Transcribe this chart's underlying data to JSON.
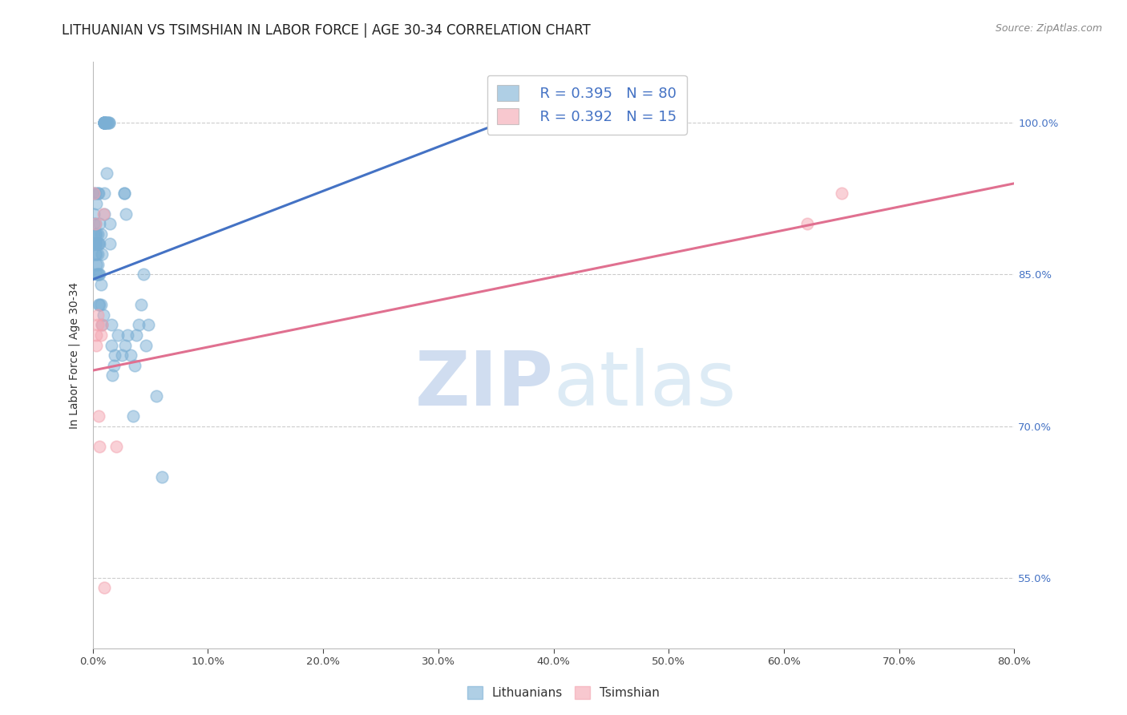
{
  "title": "LITHUANIAN VS TSIMSHIAN IN LABOR FORCE | AGE 30-34 CORRELATION CHART",
  "source_text": "Source: ZipAtlas.com",
  "ylabel": "In Labor Force | Age 30-34",
  "xmin": 0.0,
  "xmax": 0.8,
  "ymin": 0.48,
  "ymax": 1.06,
  "blue_scatter_x": [
    0.001,
    0.001,
    0.001,
    0.001,
    0.001,
    0.002,
    0.002,
    0.002,
    0.002,
    0.002,
    0.003,
    0.003,
    0.003,
    0.003,
    0.003,
    0.003,
    0.004,
    0.004,
    0.004,
    0.004,
    0.004,
    0.004,
    0.005,
    0.005,
    0.005,
    0.005,
    0.006,
    0.006,
    0.006,
    0.006,
    0.007,
    0.007,
    0.007,
    0.008,
    0.008,
    0.009,
    0.01,
    0.01,
    0.01,
    0.01,
    0.01,
    0.01,
    0.01,
    0.01,
    0.01,
    0.01,
    0.01,
    0.01,
    0.011,
    0.011,
    0.012,
    0.013,
    0.013,
    0.014,
    0.014,
    0.015,
    0.015,
    0.016,
    0.016,
    0.017,
    0.018,
    0.019,
    0.022,
    0.025,
    0.027,
    0.027,
    0.028,
    0.029,
    0.03,
    0.033,
    0.035,
    0.036,
    0.038,
    0.04,
    0.042,
    0.044,
    0.046,
    0.048,
    0.055,
    0.06
  ],
  "blue_scatter_y": [
    0.88,
    0.89,
    0.9,
    0.91,
    0.93,
    0.87,
    0.88,
    0.89,
    0.9,
    0.93,
    0.85,
    0.86,
    0.87,
    0.88,
    0.89,
    0.92,
    0.85,
    0.86,
    0.87,
    0.88,
    0.89,
    0.93,
    0.82,
    0.85,
    0.88,
    0.93,
    0.82,
    0.85,
    0.88,
    0.9,
    0.82,
    0.84,
    0.89,
    0.8,
    0.87,
    0.81,
    1.0,
    1.0,
    1.0,
    1.0,
    1.0,
    1.0,
    1.0,
    1.0,
    1.0,
    1.0,
    0.91,
    0.93,
    1.0,
    1.0,
    0.95,
    1.0,
    1.0,
    1.0,
    1.0,
    0.88,
    0.9,
    0.78,
    0.8,
    0.75,
    0.76,
    0.77,
    0.79,
    0.77,
    0.93,
    0.93,
    0.78,
    0.91,
    0.79,
    0.77,
    0.71,
    0.76,
    0.79,
    0.8,
    0.82,
    0.85,
    0.78,
    0.8,
    0.73,
    0.65
  ],
  "pink_scatter_x": [
    0.001,
    0.002,
    0.003,
    0.003,
    0.004,
    0.004,
    0.005,
    0.006,
    0.007,
    0.008,
    0.009,
    0.01,
    0.62,
    0.65,
    0.02
  ],
  "pink_scatter_y": [
    0.93,
    0.9,
    0.78,
    0.79,
    0.8,
    0.81,
    0.71,
    0.68,
    0.79,
    0.8,
    0.91,
    0.54,
    0.9,
    0.93,
    0.68
  ],
  "blue_line_x": [
    0.0,
    0.4
  ],
  "blue_line_y": [
    0.845,
    1.02
  ],
  "pink_line_x": [
    0.0,
    0.8
  ],
  "pink_line_y": [
    0.755,
    0.94
  ],
  "blue_color": "#7BAFD4",
  "pink_color": "#F4A4B0",
  "blue_line_color": "#4472C4",
  "pink_line_color": "#E07090",
  "legend_R_blue": "R = 0.395",
  "legend_N_blue": "N = 80",
  "legend_R_pink": "R = 0.392",
  "legend_N_pink": "N = 15",
  "watermark_zip": "ZIP",
  "watermark_atlas": "atlas",
  "title_fontsize": 12,
  "axis_label_fontsize": 10,
  "tick_fontsize": 9.5,
  "legend_fontsize": 13
}
